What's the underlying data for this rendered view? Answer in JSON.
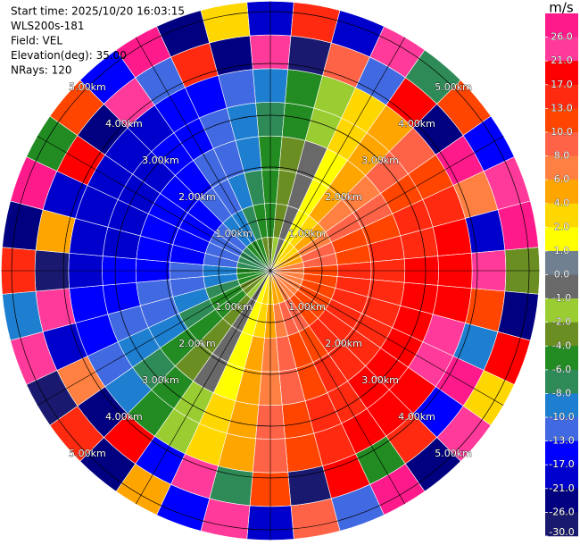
{
  "chart_data": {
    "type": "ppi",
    "info": [
      "Start time: 2025/10/20 16:03:15",
      "WLS200s-181",
      "Field: VEL",
      "Elevation(deg): 35.00",
      "NRays: 120"
    ],
    "colorbar_title": "m/s",
    "azimuths": [
      0,
      10,
      20,
      30,
      40,
      50,
      60,
      70,
      80,
      90,
      100,
      110,
      120,
      130,
      140,
      150,
      160,
      170,
      180,
      190,
      200,
      210,
      220,
      230,
      240,
      250,
      260,
      270,
      280,
      290,
      300,
      310,
      320,
      330,
      340,
      350
    ],
    "gate_edges_km": [
      0,
      0.65,
      1.3,
      1.95,
      2.6,
      3.25,
      3.9,
      4.55,
      5.2
    ],
    "rings_km": [
      1,
      2,
      3,
      4,
      5
    ],
    "ring_labels": [
      "1.00km",
      "2.00km",
      "3.00km",
      "4.00km",
      "5.00km"
    ],
    "values": [
      [
        -3,
        -5,
        -6,
        -6,
        -8,
        -9,
        22,
        -18
      ],
      [
        -2,
        -3,
        -4,
        -4,
        -5,
        -5,
        -27,
        14
      ],
      [
        -1,
        -1,
        -1,
        -1,
        -2,
        -2,
        9,
        -21
      ],
      [
        1,
        1,
        1,
        1,
        2,
        2,
        -12,
        25
      ],
      [
        2,
        3,
        4,
        4,
        5,
        5,
        18,
        -8
      ],
      [
        3,
        5,
        6,
        6,
        8,
        9,
        -24,
        11
      ],
      [
        4,
        6,
        8,
        9,
        10,
        12,
        27,
        -15
      ],
      [
        5,
        8,
        10,
        11,
        13,
        15,
        6,
        23
      ],
      [
        6,
        9,
        12,
        13,
        15,
        17,
        -19,
        28
      ],
      [
        6,
        10,
        13,
        14,
        17,
        19,
        24,
        -4
      ],
      [
        7,
        11,
        14,
        15,
        18,
        20,
        12,
        -26
      ],
      [
        7,
        11,
        14,
        15,
        18,
        21,
        -9,
        19
      ],
      [
        7,
        11,
        14,
        15,
        18,
        21,
        26,
        3
      ],
      [
        7,
        11,
        14,
        15,
        18,
        20,
        -16,
        22
      ],
      [
        6,
        10,
        13,
        14,
        17,
        19,
        15,
        -23
      ],
      [
        6,
        9,
        12,
        13,
        15,
        17,
        -5,
        27
      ],
      [
        5,
        8,
        10,
        11,
        13,
        15,
        20,
        -13
      ],
      [
        4,
        6,
        8,
        9,
        10,
        12,
        -28,
        8
      ],
      [
        3,
        5,
        6,
        6,
        8,
        9,
        11,
        -20
      ],
      [
        2,
        3,
        4,
        4,
        5,
        5,
        -7,
        24
      ],
      [
        1,
        1,
        1,
        1,
        2,
        2,
        23,
        -17
      ],
      [
        -1,
        -1,
        -1,
        -1,
        -2,
        -2,
        -14,
        5
      ],
      [
        -2,
        -3,
        -4,
        -4,
        -5,
        -5,
        19,
        -25
      ],
      [
        -3,
        -5,
        -6,
        -6,
        -8,
        -9,
        -22,
        13
      ],
      [
        -4,
        -6,
        -8,
        -9,
        -10,
        -12,
        7,
        -29
      ],
      [
        -5,
        -8,
        -10,
        -11,
        -13,
        -15,
        -18,
        21
      ],
      [
        -6,
        -9,
        -12,
        -13,
        -15,
        -17,
        25,
        -10
      ],
      [
        -6,
        -10,
        -13,
        -14,
        -17,
        -19,
        -27,
        16
      ],
      [
        -7,
        -11,
        -14,
        -15,
        -18,
        -20,
        4,
        -22
      ],
      [
        -7,
        -11,
        -14,
        -15,
        -18,
        -21,
        -20,
        26
      ],
      [
        -7,
        -11,
        -14,
        -15,
        -18,
        -21,
        17,
        -6
      ],
      [
        -7,
        -11,
        -14,
        -15,
        -18,
        -20,
        -25,
        10
      ],
      [
        -6,
        -10,
        -13,
        -14,
        -17,
        -19,
        22,
        -16
      ],
      [
        -6,
        -9,
        -12,
        -13,
        -15,
        -17,
        -11,
        28
      ],
      [
        -5,
        -8,
        -10,
        -11,
        -13,
        -15,
        14,
        -24
      ],
      [
        -4,
        -6,
        -8,
        -9,
        -10,
        -12,
        -23,
        2
      ]
    ],
    "colorbar_ticks": [
      {
        "value": 26,
        "label": "26.0"
      },
      {
        "value": 21,
        "label": "21.0"
      },
      {
        "value": 17,
        "label": "17.0"
      },
      {
        "value": 13,
        "label": "13.0"
      },
      {
        "value": 10,
        "label": "10.0"
      },
      {
        "value": 8,
        "label": "8.0"
      },
      {
        "value": 6,
        "label": "6.0"
      },
      {
        "value": 4,
        "label": "4.0"
      },
      {
        "value": 2,
        "label": "2.0"
      },
      {
        "value": 1,
        "label": "1.0"
      },
      {
        "value": 0,
        "label": "0.0"
      },
      {
        "value": -1,
        "label": "-1.0"
      },
      {
        "value": -2,
        "label": "-2.0"
      },
      {
        "value": -4,
        "label": "-4.0"
      },
      {
        "value": -6,
        "label": "-6.0"
      },
      {
        "value": -8,
        "label": "-8.0"
      },
      {
        "value": -10,
        "label": "-10.0"
      },
      {
        "value": -13,
        "label": "-13.0"
      },
      {
        "value": -17,
        "label": "-17.0"
      },
      {
        "value": -21,
        "label": "-21.0"
      },
      {
        "value": -26,
        "label": "-26.0"
      },
      {
        "value": -30,
        "label": "-30.0"
      }
    ],
    "colors": [
      "#ff1a8c",
      "#ff3a9a",
      "#ff0000",
      "#ff2a10",
      "#ff4500",
      "#ff6347",
      "#ff8040",
      "#ffa500",
      "#ffd700",
      "#ffff00",
      "#708090",
      "#696969",
      "#9acd32",
      "#6b8e23",
      "#228b22",
      "#2e8b57",
      "#1e7fd0",
      "#4169e1",
      "#0000ff",
      "#0000cd",
      "#000080",
      "#191970"
    ]
  }
}
